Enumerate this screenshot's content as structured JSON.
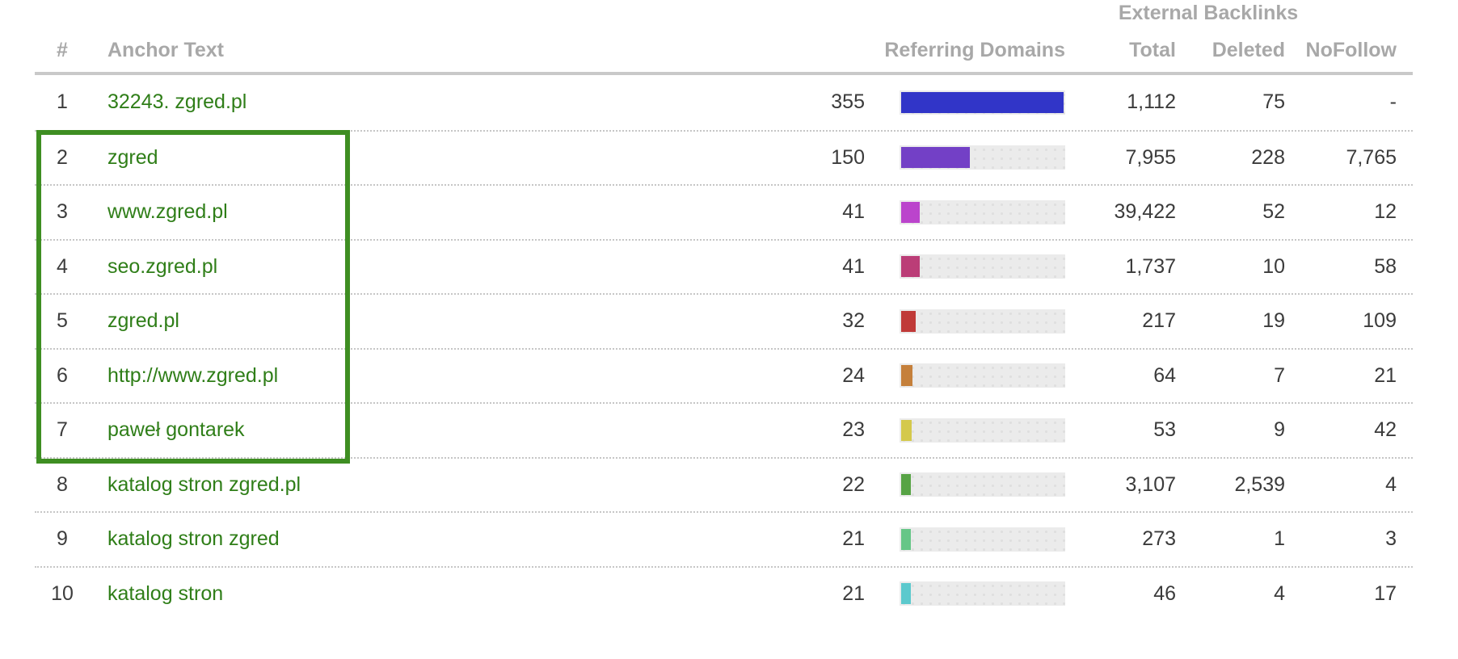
{
  "header": {
    "group_label": "External Backlinks",
    "columns": {
      "rank": "#",
      "anchor": "Anchor Text",
      "referring_domains": "Referring Domains",
      "total": "Total",
      "deleted": "Deleted",
      "nofollow": "NoFollow"
    }
  },
  "colors": {
    "anchor_link": "#2f7e18",
    "highlight_box": "#3e8e22",
    "bar_track": "#ebebeb",
    "header_text": "#a8a8a8",
    "row_separator": "#c6c6c6"
  },
  "bar_max_referring_domains": 355,
  "rows": [
    {
      "rank": "1",
      "anchor": "32243. zgred.pl",
      "referring_domains": "355",
      "total": "1,112",
      "deleted": "75",
      "nofollow": "-",
      "bar_color": "#3135c8",
      "bar_pct": 100
    },
    {
      "rank": "2",
      "anchor": "zgred",
      "referring_domains": "150",
      "total": "7,955",
      "deleted": "228",
      "nofollow": "7,765",
      "bar_color": "#7340c6",
      "bar_pct": 42.3
    },
    {
      "rank": "3",
      "anchor": "www.zgred.pl",
      "referring_domains": "41",
      "total": "39,422",
      "deleted": "52",
      "nofollow": "12",
      "bar_color": "#bb44cc",
      "bar_pct": 11.5
    },
    {
      "rank": "4",
      "anchor": "seo.zgred.pl",
      "referring_domains": "41",
      "total": "1,737",
      "deleted": "10",
      "nofollow": "58",
      "bar_color": "#bb3d77",
      "bar_pct": 11.5
    },
    {
      "rank": "5",
      "anchor": "zgred.pl",
      "referring_domains": "32",
      "total": "217",
      "deleted": "19",
      "nofollow": "109",
      "bar_color": "#c03a38",
      "bar_pct": 9.0
    },
    {
      "rank": "6",
      "anchor": "http://www.zgred.pl",
      "referring_domains": "24",
      "total": "64",
      "deleted": "7",
      "nofollow": "21",
      "bar_color": "#c5803b",
      "bar_pct": 6.8
    },
    {
      "rank": "7",
      "anchor": "paweł gontarek",
      "referring_domains": "23",
      "total": "53",
      "deleted": "9",
      "nofollow": "42",
      "bar_color": "#d4c94c",
      "bar_pct": 6.5
    },
    {
      "rank": "8",
      "anchor": "katalog stron zgred.pl",
      "referring_domains": "22",
      "total": "3,107",
      "deleted": "2,539",
      "nofollow": "4",
      "bar_color": "#57a345",
      "bar_pct": 6.2
    },
    {
      "rank": "9",
      "anchor": "katalog stron zgred",
      "referring_domains": "21",
      "total": "273",
      "deleted": "1",
      "nofollow": "3",
      "bar_color": "#66c687",
      "bar_pct": 5.9
    },
    {
      "rank": "10",
      "anchor": "katalog stron",
      "referring_domains": "21",
      "total": "46",
      "deleted": "4",
      "nofollow": "17",
      "bar_color": "#5cc9cd",
      "bar_pct": 5.9
    }
  ],
  "highlight": {
    "from_rank": 2,
    "to_rank": 7
  }
}
